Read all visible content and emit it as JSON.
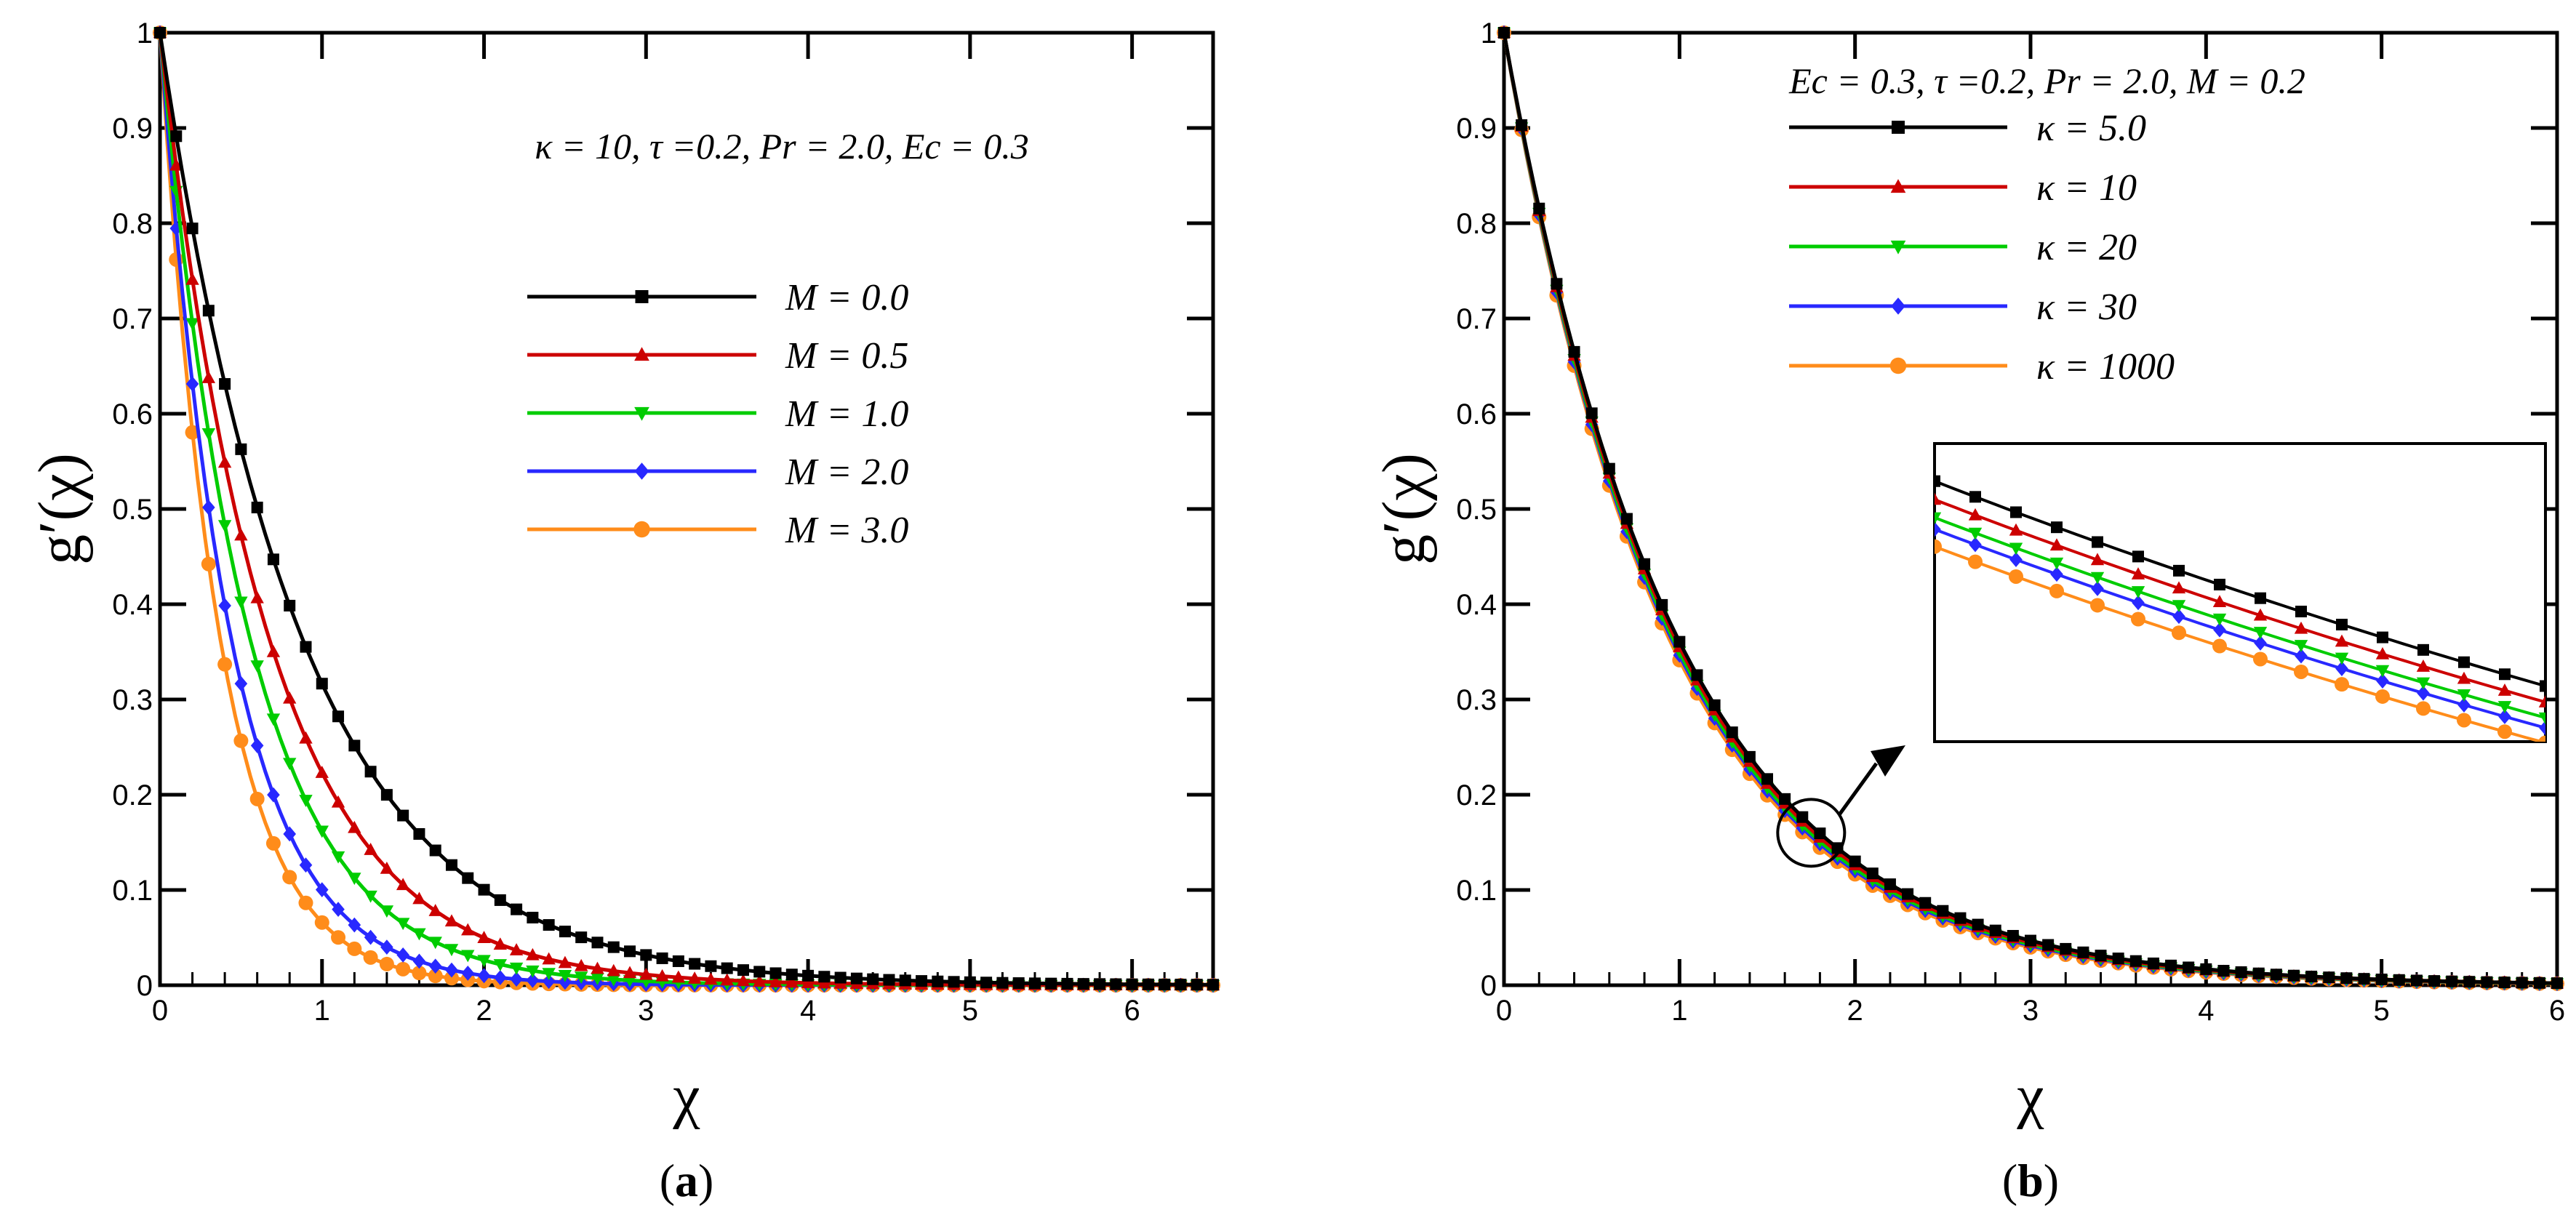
{
  "chart_data": [
    {
      "id": "a",
      "type": "line",
      "caption": "a",
      "xlabel": "χ",
      "ylabel": "g′(χ)",
      "xlim": [
        0,
        6.5
      ],
      "ylim": [
        0,
        1
      ],
      "xticks": [
        "0",
        "1",
        "2",
        "3",
        "4",
        "5",
        "6"
      ],
      "yticks": [
        "0",
        "0.1",
        "0.2",
        "0.3",
        "0.4",
        "0.5",
        "0.6",
        "0.7",
        "0.8",
        "0.9",
        "1"
      ],
      "annotation": "κ = 10, τ =0.2, Pr = 2.0, Ec = 0.3",
      "legend_position": "center-right",
      "series": [
        {
          "name": "M = 0.0",
          "color": "#000000",
          "marker": "square",
          "decay_rate": 1.15
        },
        {
          "name": "M = 0.5",
          "color": "#cc0000",
          "marker": "triangle-up",
          "decay_rate": 1.5
        },
        {
          "name": "M = 1.0",
          "color": "#00cc00",
          "marker": "triangle-down",
          "decay_rate": 1.82
        },
        {
          "name": "M = 2.0",
          "color": "#2828ff",
          "marker": "diamond",
          "decay_rate": 2.3
        },
        {
          "name": "M = 3.0",
          "color": "#ff8c1a",
          "marker": "circle",
          "decay_rate": 2.72
        }
      ]
    },
    {
      "id": "b",
      "type": "line",
      "caption": "b",
      "xlabel": "χ",
      "ylabel": "g′(χ)",
      "xlim": [
        0,
        6
      ],
      "ylim": [
        0,
        1
      ],
      "xticks": [
        "0",
        "1",
        "2",
        "3",
        "4",
        "5",
        "6"
      ],
      "yticks": [
        "0",
        "0.1",
        "0.2",
        "0.3",
        "0.4",
        "0.5",
        "0.6",
        "0.7",
        "0.8",
        "0.9",
        "1"
      ],
      "annotation": "Ec = 0.3, τ =0.2, Pr = 2.0, M = 0.2",
      "legend_position": "top-center",
      "inset": "zoom of curves near χ ≈ 1.75",
      "series": [
        {
          "name": "κ = 5.0",
          "color": "#000000",
          "marker": "square",
          "decay_rate": 1.02
        },
        {
          "name": "κ = 10",
          "color": "#cc0000",
          "marker": "triangle-up",
          "decay_rate": 1.035
        },
        {
          "name": "κ = 20",
          "color": "#00cc00",
          "marker": "triangle-down",
          "decay_rate": 1.05
        },
        {
          "name": "κ = 30",
          "color": "#2828ff",
          "marker": "diamond",
          "decay_rate": 1.06
        },
        {
          "name": "κ = 1000",
          "color": "#ff8c1a",
          "marker": "circle",
          "decay_rate": 1.075
        }
      ]
    }
  ]
}
